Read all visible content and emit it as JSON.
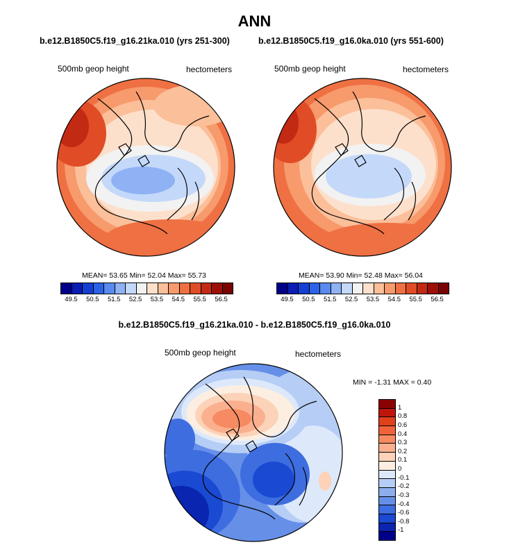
{
  "title": "ANN",
  "panels": [
    {
      "case_title": "b.e12.B1850C5.f19_g16.21ka.010 (yrs 251-300)",
      "variable": "500mb geop height",
      "units": "hectometers",
      "stats": "MEAN=  53.65  Min=  52.04  Max=  55.73"
    },
    {
      "case_title": "b.e12.B1850C5.f19_g16.0ka.010 (yrs 551-600)",
      "variable": "500mb geop height",
      "units": "hectometers",
      "stats": "MEAN=  53.90  Min=  52.48  Max=  56.04"
    }
  ],
  "diff_panel": {
    "case_title": "b.e12.B1850C5.f19_g16.21ka.010 - b.e12.B1850C5.f19_g16.0ka.010",
    "variable": "500mb geop height",
    "units": "hectometers",
    "stats": "MIN =  -1.31 MAX =   0.40"
  },
  "colorbar_main": {
    "labels": [
      "49.5",
      "50.5",
      "51.5",
      "52.5",
      "53.5",
      "54.5",
      "55.5",
      "56.5"
    ],
    "colors": [
      "#00008b",
      "#0a1eb4",
      "#143fd2",
      "#2b62e6",
      "#5a8af0",
      "#8fb2f5",
      "#c4d9fa",
      "#f2f2f2",
      "#fde0cc",
      "#fbbf9a",
      "#f79a6c",
      "#ef7043",
      "#e04c26",
      "#c22a14",
      "#9c1008",
      "#7a0404"
    ]
  },
  "colorbar_diff": {
    "labels": [
      "1",
      "0.8",
      "0.6",
      "0.4",
      "0.3",
      "0.2",
      "0.1",
      "0",
      "-0.1",
      "-0.2",
      "-0.3",
      "-0.4",
      "-0.6",
      "-0.8",
      "-1"
    ],
    "colors": [
      "#8b0000",
      "#c0150a",
      "#e0401c",
      "#f0633a",
      "#f68a62",
      "#fab08e",
      "#fcd2b8",
      "#fdeee2",
      "#dde9fb",
      "#b6cdf5",
      "#8daeee",
      "#6690e8",
      "#3e6de0",
      "#1a49d2",
      "#0a25b0",
      "#00008b"
    ]
  }
}
